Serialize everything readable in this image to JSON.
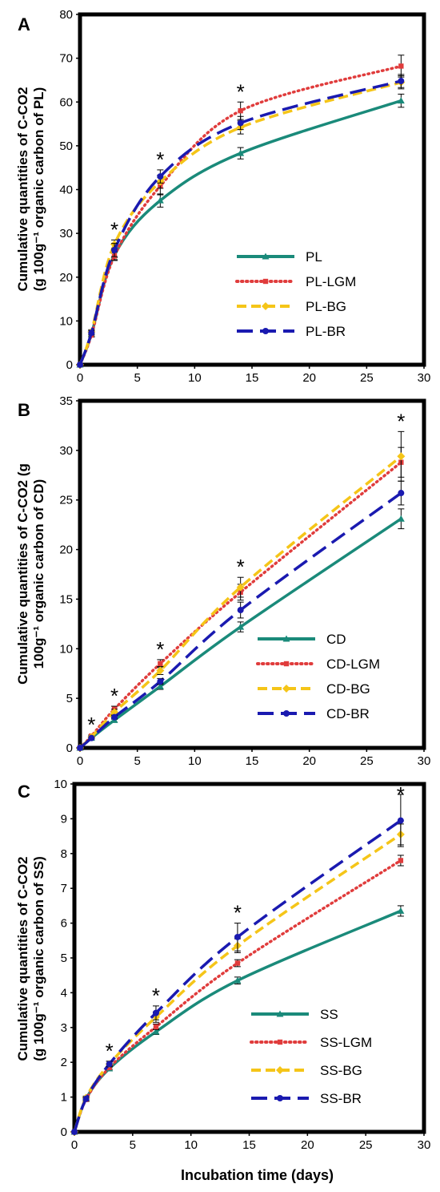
{
  "chart_data": [
    {
      "type": "line",
      "panel_letter": "A",
      "ylabel_lines": [
        "Cumulative quantities of C-CO2",
        "(g 100g⁻¹ organic carbon of PL)"
      ],
      "x_ticks": [
        "0",
        "5",
        "10",
        "15",
        "20",
        "25",
        "30"
      ],
      "y_ticks": [
        "0",
        "10",
        "20",
        "30",
        "40",
        "50",
        "60",
        "70",
        "80"
      ],
      "xlim": [
        0,
        30
      ],
      "ylim": [
        0,
        80
      ],
      "grid": false,
      "legend_position": "bottom-right",
      "x": [
        0,
        1,
        3,
        7,
        14,
        28
      ],
      "series": [
        {
          "name": "PL",
          "color": "#1a8a7a",
          "style": "solid",
          "marker": "triangle",
          "values": [
            0,
            7,
            25,
            37.5,
            48.3,
            60.3
          ],
          "errors": [
            0,
            0.5,
            1,
            1.5,
            1.3,
            1.5
          ]
        },
        {
          "name": "PL-LGM",
          "color": "#e03c3c",
          "style": "dotted",
          "marker": "square",
          "values": [
            0,
            6.8,
            24.8,
            40.8,
            58,
            68.2
          ],
          "errors": [
            0,
            0.5,
            1,
            2,
            2,
            2.5
          ]
        },
        {
          "name": "PL-BG",
          "color": "#f5c518",
          "style": "dashed",
          "marker": "diamond",
          "values": [
            0,
            7.5,
            27.5,
            41.8,
            54.2,
            64.5
          ],
          "errors": [
            0,
            0.5,
            1,
            1.5,
            1.5,
            1.5
          ]
        },
        {
          "name": "PL-BR",
          "color": "#1a1ab0",
          "style": "longdash",
          "marker": "circle",
          "values": [
            0,
            7.3,
            26.2,
            43,
            55.2,
            64.8
          ],
          "errors": [
            0,
            0.5,
            1.5,
            1.5,
            1.5,
            1.5
          ]
        }
      ],
      "significance_x": [
        3,
        7,
        14
      ],
      "significance_mark": "*"
    },
    {
      "type": "line",
      "panel_letter": "B",
      "ylabel_lines": [
        "Cumulative quantities of C-CO2 (g",
        "100g⁻¹ organic carbon of CD)"
      ],
      "x_ticks": [
        "0",
        "5",
        "10",
        "15",
        "20",
        "25",
        "30"
      ],
      "y_ticks": [
        "0",
        "5",
        "10",
        "15",
        "20",
        "25",
        "30",
        "35"
      ],
      "xlim": [
        0,
        30
      ],
      "ylim": [
        0,
        35
      ],
      "grid": false,
      "legend_position": "bottom-right",
      "x": [
        0,
        1,
        3,
        7,
        14,
        28
      ],
      "series": [
        {
          "name": "CD",
          "color": "#1a8a7a",
          "style": "solid",
          "marker": "triangle",
          "values": [
            0,
            1,
            2.8,
            6.2,
            12.2,
            23.1
          ],
          "errors": [
            0,
            0.1,
            0.2,
            0.3,
            0.5,
            1
          ]
        },
        {
          "name": "CD-LGM",
          "color": "#e03c3c",
          "style": "dotted",
          "marker": "square",
          "values": [
            0,
            1.2,
            3.9,
            8.5,
            15.7,
            28.8
          ],
          "errors": [
            0,
            0.1,
            0.3,
            0.4,
            0.8,
            1.5
          ]
        },
        {
          "name": "CD-BG",
          "color": "#f5c518",
          "style": "dashed",
          "marker": "diamond",
          "values": [
            0,
            1.1,
            3.6,
            7.8,
            16.2,
            29.4
          ],
          "errors": [
            0,
            0.1,
            0.3,
            0.4,
            1,
            2.5
          ]
        },
        {
          "name": "CD-BR",
          "color": "#1a1ab0",
          "style": "longdash",
          "marker": "circle",
          "values": [
            0,
            1,
            3.1,
            6.7,
            13.9,
            25.7
          ],
          "errors": [
            0,
            0.1,
            0.2,
            0.3,
            0.8,
            1.2
          ]
        }
      ],
      "significance_x": [
        1,
        3,
        7,
        14,
        28
      ],
      "significance_mark": "*"
    },
    {
      "type": "line",
      "panel_letter": "C",
      "ylabel_lines": [
        "Cumulative quantities of C-CO2",
        "(g 100g⁻¹ organic carbon of SS)"
      ],
      "xlabel": "Incubation time (days)",
      "x_ticks": [
        "0",
        "5",
        "10",
        "15",
        "20",
        "25",
        "30"
      ],
      "y_ticks": [
        "0",
        "1",
        "2",
        "3",
        "4",
        "5",
        "6",
        "7",
        "8",
        "9",
        "10"
      ],
      "xlim": [
        0,
        30
      ],
      "ylim": [
        0,
        10
      ],
      "grid": false,
      "legend_position": "bottom-right",
      "x": [
        0,
        1,
        3,
        7,
        14,
        28
      ],
      "series": [
        {
          "name": "SS",
          "color": "#1a8a7a",
          "style": "solid",
          "marker": "triangle",
          "values": [
            0,
            0.95,
            1.82,
            2.88,
            4.35,
            6.35
          ],
          "errors": [
            0,
            0.05,
            0.05,
            0.08,
            0.1,
            0.15
          ]
        },
        {
          "name": "SS-LGM",
          "color": "#e03c3c",
          "style": "dotted",
          "marker": "square",
          "values": [
            0,
            0.93,
            1.85,
            3.02,
            4.85,
            7.8
          ],
          "errors": [
            0,
            0.05,
            0.05,
            0.08,
            0.1,
            0.15
          ]
        },
        {
          "name": "SS-BG",
          "color": "#f5c518",
          "style": "dashed",
          "marker": "diamond",
          "values": [
            0,
            0.98,
            1.95,
            3.3,
            5.35,
            8.55
          ],
          "errors": [
            0,
            0.05,
            0.08,
            0.15,
            0.2,
            0.3
          ]
        },
        {
          "name": "SS-BR",
          "color": "#1a1ab0",
          "style": "longdash",
          "marker": "circle",
          "values": [
            0,
            0.95,
            1.95,
            3.42,
            5.6,
            8.95
          ],
          "errors": [
            0,
            0.05,
            0.08,
            0.2,
            0.4,
            0.75
          ]
        }
      ],
      "significance_x": [
        3,
        7,
        14,
        28
      ],
      "significance_mark": "*"
    }
  ]
}
